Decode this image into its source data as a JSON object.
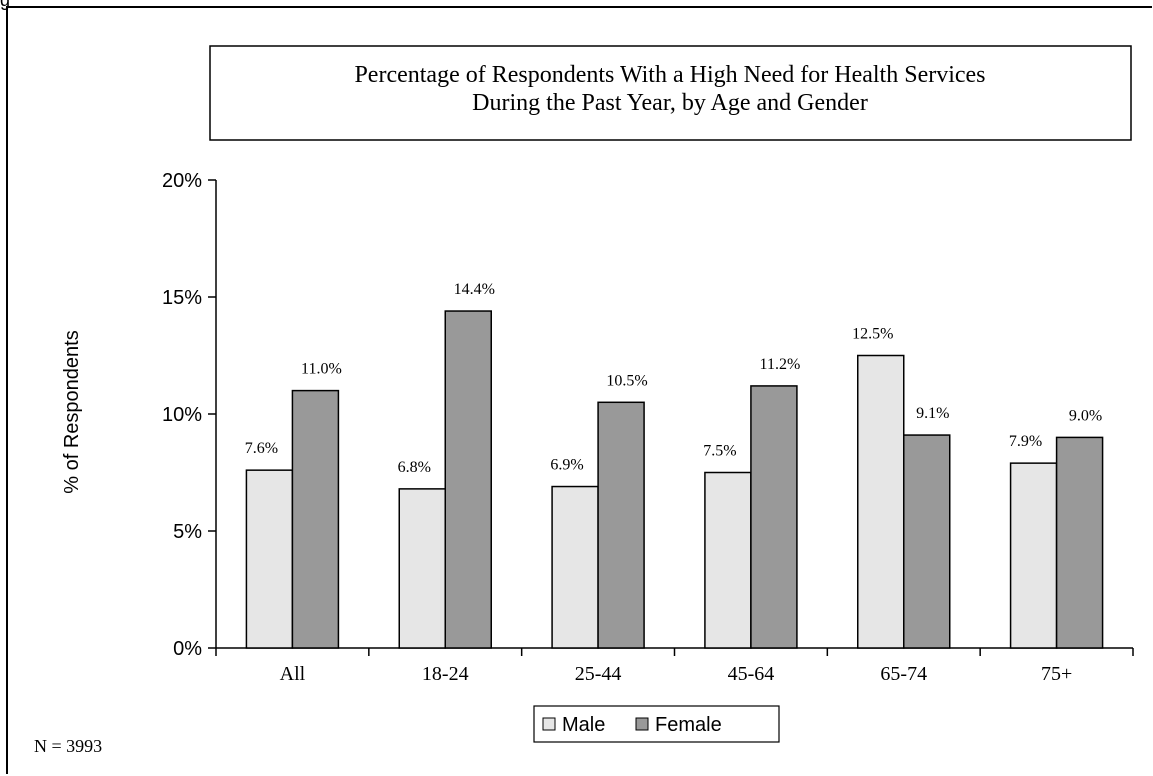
{
  "corner_fragment": "g",
  "chart_data": {
    "type": "bar",
    "title_lines": [
      "Percentage of Respondents With a High Need for Health Services",
      "During the Past Year, by Age and Gender"
    ],
    "xlabel": "",
    "ylabel": "% of Respondents",
    "ylim": [
      0,
      20
    ],
    "yticks": [
      "0%",
      "5%",
      "10%",
      "15%",
      "20%"
    ],
    "ytick_values": [
      0,
      5,
      10,
      15,
      20
    ],
    "categories": [
      "All",
      "18-24",
      "25-44",
      "45-64",
      "65-74",
      "75+"
    ],
    "series": [
      {
        "name": "Male",
        "color": "#e6e6e6",
        "values": [
          7.6,
          6.8,
          6.9,
          7.5,
          12.5,
          7.9
        ],
        "labels": [
          "7.6%",
          "6.8%",
          "6.9%",
          "7.5%",
          "12.5%",
          "7.9%"
        ]
      },
      {
        "name": "Female",
        "color": "#999999",
        "values": [
          11.0,
          14.4,
          10.5,
          11.2,
          9.1,
          9.0
        ],
        "labels": [
          "11.0%",
          "14.4%",
          "10.5%",
          "11.2%",
          "9.1%",
          "9.0%"
        ]
      }
    ],
    "grid": false,
    "legend_position": "bottom"
  },
  "footnote": "N = 3993"
}
